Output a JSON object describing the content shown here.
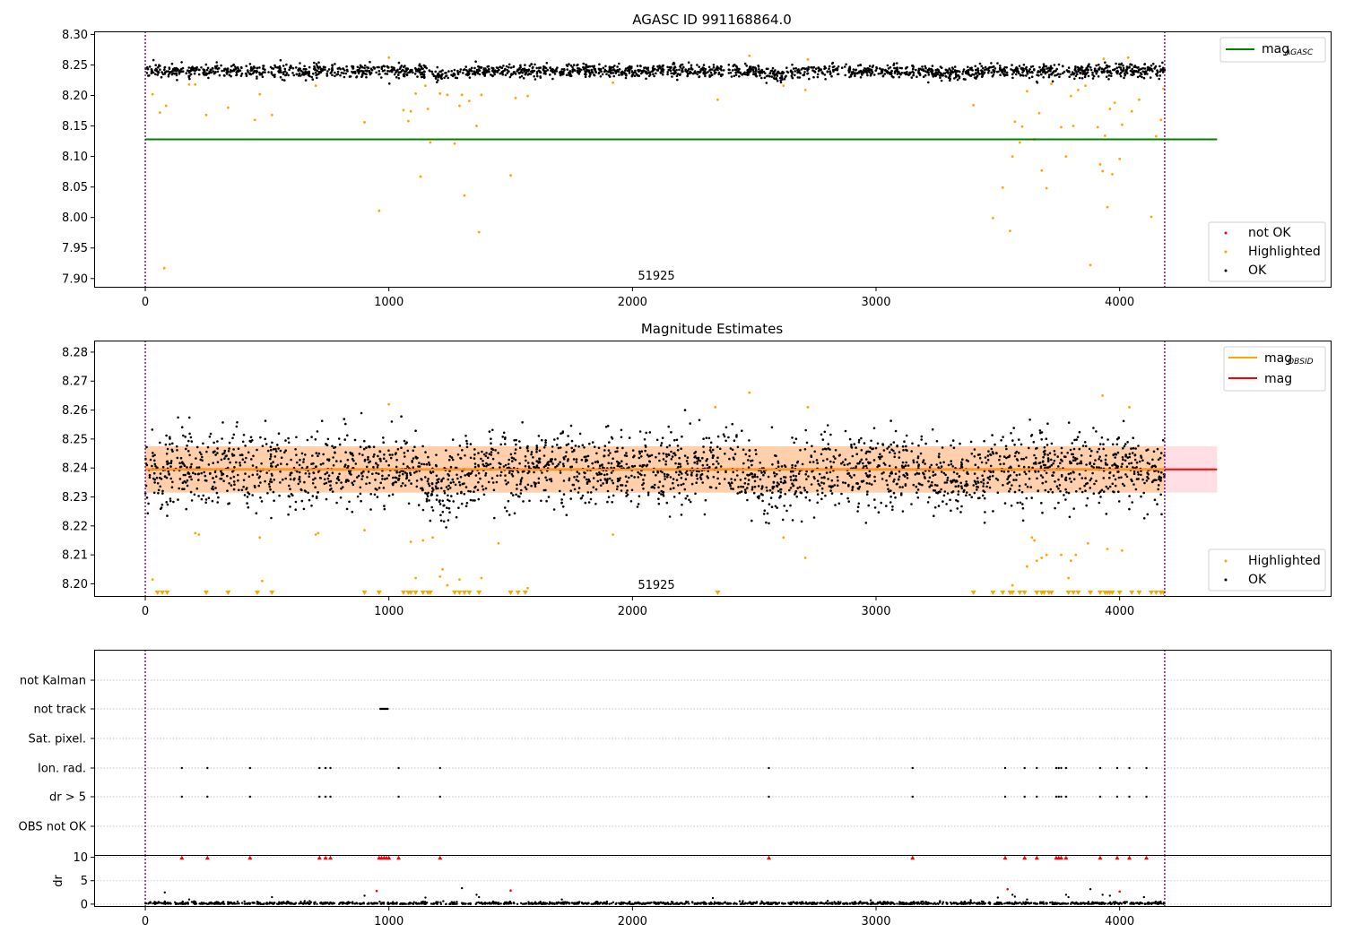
{
  "chart_data": [
    {
      "type": "scatter",
      "title": "AGASC ID 991168864.0",
      "annotation": "51925",
      "x_ticks": [
        0,
        1000,
        2000,
        3000,
        4000
      ],
      "y_ticks": [
        "7.90",
        "7.95",
        "8.00",
        "8.05",
        "8.10",
        "8.15",
        "8.20",
        "8.25",
        "8.30"
      ],
      "xlim": [
        -210,
        4870
      ],
      "ylim": [
        7.885,
        8.305
      ],
      "obs_boundaries": [
        0,
        4185
      ],
      "mag_agasc": 8.128,
      "ok_band": {
        "center": 8.24,
        "sigma": 0.0055,
        "x_range": [
          0,
          4185
        ]
      },
      "dips": [
        {
          "x": 1220,
          "width": 60,
          "depth": 0.008
        },
        {
          "x": 2590,
          "width": 80,
          "depth": 0.007
        },
        {
          "x": 3310,
          "width": 90,
          "depth": 0.005
        }
      ],
      "highlighted": [
        [
          30,
          8.202
        ],
        [
          60,
          8.172
        ],
        [
          78,
          7.917
        ],
        [
          85,
          8.183
        ],
        [
          180,
          8.218
        ],
        [
          205,
          8.218
        ],
        [
          250,
          8.168
        ],
        [
          340,
          8.18
        ],
        [
          450,
          8.16
        ],
        [
          470,
          8.202
        ],
        [
          520,
          8.168
        ],
        [
          700,
          8.216
        ],
        [
          900,
          8.156
        ],
        [
          960,
          8.011
        ],
        [
          1000,
          8.262
        ],
        [
          1060,
          8.176
        ],
        [
          1080,
          8.158
        ],
        [
          1090,
          8.174
        ],
        [
          1110,
          8.203
        ],
        [
          1130,
          8.067
        ],
        [
          1150,
          8.216
        ],
        [
          1160,
          8.178
        ],
        [
          1170,
          8.123
        ],
        [
          1210,
          8.203
        ],
        [
          1240,
          8.201
        ],
        [
          1270,
          8.121
        ],
        [
          1290,
          8.183
        ],
        [
          1300,
          8.201
        ],
        [
          1310,
          8.036
        ],
        [
          1330,
          8.191
        ],
        [
          1360,
          8.15
        ],
        [
          1370,
          7.976
        ],
        [
          1380,
          8.201
        ],
        [
          1500,
          8.069
        ],
        [
          1520,
          8.196
        ],
        [
          1570,
          8.199
        ],
        [
          1920,
          8.221
        ],
        [
          2350,
          8.193
        ],
        [
          2480,
          8.265
        ],
        [
          2620,
          8.216
        ],
        [
          2710,
          8.209
        ],
        [
          2720,
          8.259
        ],
        [
          3400,
          8.184
        ],
        [
          3480,
          7.999
        ],
        [
          3520,
          8.049
        ],
        [
          3550,
          7.978
        ],
        [
          3560,
          8.1
        ],
        [
          3570,
          8.157
        ],
        [
          3590,
          8.123
        ],
        [
          3600,
          8.149
        ],
        [
          3620,
          8.207
        ],
        [
          3650,
          8.128
        ],
        [
          3670,
          8.171
        ],
        [
          3680,
          8.077
        ],
        [
          3700,
          8.048
        ],
        [
          3720,
          8.219
        ],
        [
          3760,
          8.148
        ],
        [
          3780,
          8.1
        ],
        [
          3800,
          8.199
        ],
        [
          3810,
          8.15
        ],
        [
          3830,
          8.209
        ],
        [
          3860,
          8.216
        ],
        [
          3880,
          7.922
        ],
        [
          3910,
          8.148
        ],
        [
          3920,
          8.087
        ],
        [
          3930,
          8.076
        ],
        [
          3940,
          8.134
        ],
        [
          3950,
          8.017
        ],
        [
          3960,
          8.178
        ],
        [
          3970,
          8.071
        ],
        [
          3980,
          8.188
        ],
        [
          4000,
          8.096
        ],
        [
          4010,
          8.152
        ],
        [
          4050,
          8.174
        ],
        [
          4080,
          8.193
        ],
        [
          4130,
          8.001
        ],
        [
          4150,
          8.133
        ],
        [
          4170,
          8.16
        ],
        [
          4180,
          8.211
        ],
        [
          3935,
          8.26
        ],
        [
          4035,
          8.262
        ]
      ],
      "legends": [
        {
          "position": "upper right",
          "entries": [
            {
              "label": "mag",
              "sub": "AGASC",
              "kind": "line",
              "color": "#008000"
            }
          ]
        },
        {
          "position": "lower right",
          "entries": [
            {
              "label": "not OK",
              "kind": "point",
              "color": "#ff0000"
            },
            {
              "label": "Highlighted",
              "kind": "point",
              "color": "#ffa500"
            },
            {
              "label": "OK",
              "kind": "point",
              "color": "#000000"
            }
          ]
        }
      ]
    },
    {
      "type": "scatter",
      "title": "Magnitude Estimates",
      "annotation": "51925",
      "x_ticks": [
        0,
        1000,
        2000,
        3000,
        4000
      ],
      "y_ticks": [
        "8.20",
        "8.21",
        "8.22",
        "8.23",
        "8.24",
        "8.25",
        "8.26",
        "8.27",
        "8.28"
      ],
      "xlim": [
        -210,
        4870
      ],
      "ylim": [
        8.1955,
        8.284
      ],
      "mag": 8.2395,
      "mag_band": [
        8.2315,
        8.2475
      ],
      "mag_obsid": 8.2395,
      "ok_band": {
        "center": 8.2395,
        "sigma": 0.0062,
        "x_range": [
          0,
          4185
        ]
      },
      "highlighted": [
        [
          30,
          8.2015
        ],
        [
          205,
          8.2175
        ],
        [
          220,
          8.217
        ],
        [
          470,
          8.216
        ],
        [
          480,
          8.201
        ],
        [
          700,
          8.217
        ],
        [
          710,
          8.2175
        ],
        [
          900,
          8.2185
        ],
        [
          1000,
          8.262
        ],
        [
          1090,
          8.2145
        ],
        [
          1110,
          8.202
        ],
        [
          1140,
          8.215
        ],
        [
          1180,
          8.216
        ],
        [
          1210,
          8.2025
        ],
        [
          1220,
          8.205
        ],
        [
          1240,
          8.1995
        ],
        [
          1290,
          8.2015
        ],
        [
          1380,
          8.202
        ],
        [
          1450,
          8.214
        ],
        [
          1570,
          8.1985
        ],
        [
          1920,
          8.217
        ],
        [
          2340,
          8.261
        ],
        [
          2480,
          8.266
        ],
        [
          2620,
          8.216
        ],
        [
          2710,
          8.209
        ],
        [
          2720,
          8.261
        ],
        [
          3560,
          8.1995
        ],
        [
          3620,
          8.206
        ],
        [
          3640,
          8.216
        ],
        [
          3650,
          8.215
        ],
        [
          3660,
          8.208
        ],
        [
          3680,
          8.209
        ],
        [
          3700,
          8.21
        ],
        [
          3760,
          8.21
        ],
        [
          3790,
          8.202
        ],
        [
          3800,
          8.208
        ],
        [
          3820,
          8.21
        ],
        [
          3870,
          8.214
        ],
        [
          3930,
          8.265
        ],
        [
          3950,
          8.212
        ],
        [
          4010,
          8.2115
        ],
        [
          4040,
          8.261
        ]
      ],
      "below_axis_markers": [
        50,
        70,
        90,
        250,
        340,
        460,
        520,
        900,
        960,
        1060,
        1080,
        1090,
        1110,
        1140,
        1160,
        1170,
        1270,
        1290,
        1310,
        1330,
        1370,
        1500,
        1530,
        1560,
        2350,
        3400,
        3480,
        3520,
        3550,
        3560,
        3590,
        3610,
        3660,
        3680,
        3690,
        3710,
        3720,
        3790,
        3810,
        3830,
        3880,
        3920,
        3940,
        3950,
        3960,
        3970,
        4000,
        4050,
        4080,
        4130,
        4150,
        4170,
        4180
      ],
      "legends": [
        {
          "position": "upper right",
          "entries": [
            {
              "label": "mag",
              "sub": "OBSID",
              "kind": "line",
              "color": "#ffa500"
            },
            {
              "label": "mag",
              "kind": "line",
              "color": "#ff0000"
            }
          ]
        },
        {
          "position": "lower right",
          "entries": [
            {
              "label": "Highlighted",
              "kind": "point",
              "color": "#ffa500"
            },
            {
              "label": "OK",
              "kind": "point",
              "color": "#000000"
            }
          ]
        }
      ]
    },
    {
      "type": "scatter",
      "y_categories": [
        "not Kalman",
        "not track",
        "Sat. pixel.",
        "Ion. rad.",
        "dr > 5",
        "OBS not OK"
      ],
      "xlim": [
        -210,
        4870
      ],
      "flags": {
        "not track": [
          965,
          970,
          975,
          980,
          985,
          990,
          995
        ],
        "Ion. rad.": [
          150,
          255,
          430,
          715,
          740,
          760,
          1040,
          1210,
          2560,
          3150,
          3530,
          3610,
          3660,
          3740,
          3750,
          3760,
          3780,
          3920,
          3990,
          4040,
          4110
        ],
        "dr > 5": [
          150,
          255,
          430,
          715,
          740,
          760,
          1040,
          1210,
          2560,
          3150,
          3530,
          3610,
          3660,
          3740,
          3750,
          3760,
          3780,
          3920,
          3990,
          4040,
          4110
        ]
      }
    },
    {
      "type": "scatter",
      "ylabel": "dr",
      "x_ticks": [
        0,
        1000,
        2000,
        3000,
        4000
      ],
      "y_ticks": [
        "0",
        "5",
        "10"
      ],
      "xlim": [
        -210,
        4870
      ],
      "ylim": [
        -0.6,
        10.5
      ],
      "threshold": 10,
      "clipped_red_markers": [
        150,
        255,
        430,
        715,
        740,
        760,
        960,
        970,
        980,
        990,
        1000,
        1040,
        1210,
        2560,
        3150,
        3530,
        3610,
        3660,
        3740,
        3750,
        3760,
        3780,
        3920,
        3990,
        4040,
        4110
      ],
      "red_points": [
        [
          950,
          2.8
        ],
        [
          1500,
          2.9
        ],
        [
          3540,
          3.2
        ],
        [
          4000,
          2.7
        ]
      ],
      "scattered_points": [
        [
          80,
          2.5
        ],
        [
          180,
          1.0
        ],
        [
          520,
          1.5
        ],
        [
          900,
          1.8
        ],
        [
          1150,
          1.4
        ],
        [
          1300,
          3.4
        ],
        [
          1360,
          2.0
        ],
        [
          1370,
          1.5
        ],
        [
          1710,
          1.0
        ],
        [
          2330,
          1.3
        ],
        [
          3500,
          1.4
        ],
        [
          3560,
          2.0
        ],
        [
          3570,
          1.6
        ],
        [
          3620,
          1.0
        ],
        [
          3780,
          2.0
        ],
        [
          3790,
          1.5
        ],
        [
          3880,
          3.2
        ],
        [
          3930,
          2.0
        ],
        [
          3960,
          1.8
        ],
        [
          4100,
          1.5
        ]
      ]
    }
  ]
}
